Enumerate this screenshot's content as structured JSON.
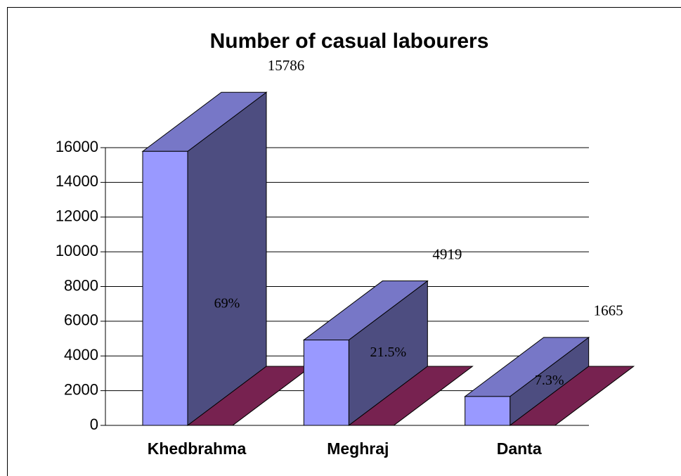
{
  "chart_data": {
    "type": "bar3d",
    "title": "Number of casual labourers",
    "categories": [
      "Khedbrahma",
      "Meghraj",
      "Danta"
    ],
    "series": [
      {
        "color": "#9999ff",
        "values": [
          15786,
          4919,
          1665
        ]
      },
      {
        "color": "#772250",
        "values": [
          0,
          0,
          0
        ]
      }
    ],
    "percentages": [
      69,
      21.5,
      7.3
    ],
    "percentage_labels": [
      "69%",
      "21.5%",
      "7.3%"
    ],
    "ylim": [
      0,
      16000
    ],
    "yticks": [
      0,
      2000,
      4000,
      6000,
      8000,
      10000,
      12000,
      14000,
      16000
    ],
    "grid": true
  }
}
